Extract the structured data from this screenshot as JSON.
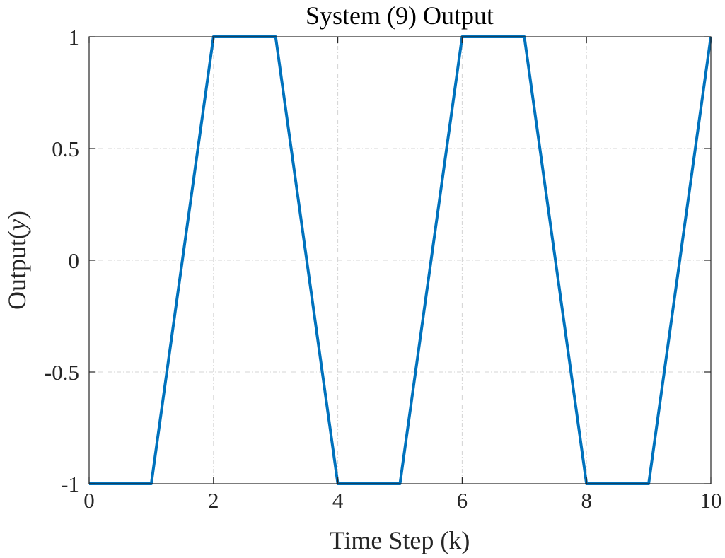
{
  "chart_data": {
    "type": "line",
    "title": "System (9) Output",
    "xlabel": "Time Step (k)",
    "ylabel_text": "Output(",
    "ylabel_var": "y",
    "ylabel_close": ")",
    "xlim": [
      0,
      10
    ],
    "ylim": [
      -1,
      1
    ],
    "xticks": [
      0,
      2,
      4,
      6,
      8,
      10
    ],
    "xtick_labels": [
      "0",
      "2",
      "4",
      "6",
      "8",
      "10"
    ],
    "yticks": [
      -1,
      -0.5,
      0,
      0.5,
      1
    ],
    "ytick_labels": [
      "-1",
      "-0.5",
      "0",
      "0.5",
      "1"
    ],
    "grid": true,
    "series": [
      {
        "color": "#0072BD",
        "x": [
          0,
          1,
          2,
          3,
          4,
          5,
          6,
          7,
          8,
          9,
          10
        ],
        "y": [
          -1,
          -1,
          1,
          1,
          -1,
          -1,
          1,
          1,
          -1,
          -1,
          1
        ]
      }
    ]
  }
}
